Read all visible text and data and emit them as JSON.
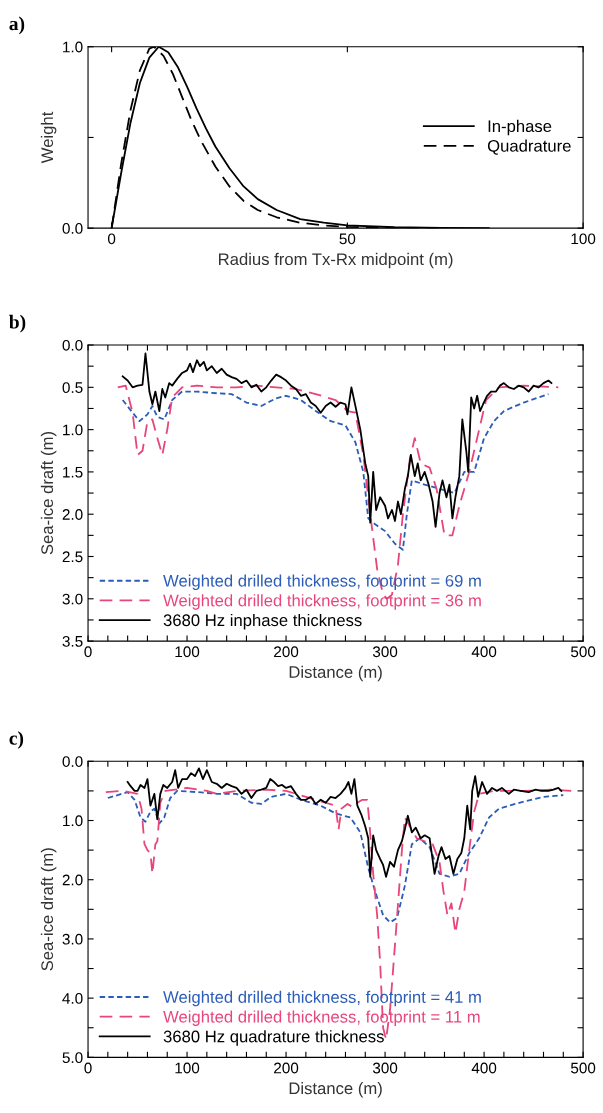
{
  "chart_data": [
    {
      "type": "line",
      "title": "a)",
      "xlabel": "Radius from Tx-Rx midpoint (m)",
      "ylabel": "Weight",
      "xlim": [
        -5,
        100
      ],
      "ylim": [
        0,
        1
      ],
      "xticks": [
        0,
        50,
        100
      ],
      "yticks": [
        {
          "value": 0,
          "label": "0.0"
        },
        {
          "value": 0.5,
          "label": null
        },
        {
          "value": 1,
          "label": "1.0"
        }
      ],
      "grid": false,
      "legend": "right",
      "marker": "none",
      "series": [
        {
          "name": "In-phase",
          "color": "#000000",
          "line_style": "solid",
          "x": [
            0,
            2,
            4,
            6,
            8,
            10,
            12,
            14,
            16,
            18,
            20,
            22,
            25,
            28,
            31,
            35,
            40,
            45,
            50,
            60,
            70,
            80
          ],
          "values": [
            0,
            0.3,
            0.58,
            0.8,
            0.94,
            1.0,
            0.97,
            0.89,
            0.78,
            0.66,
            0.55,
            0.45,
            0.33,
            0.23,
            0.16,
            0.1,
            0.05,
            0.03,
            0.015,
            0.005,
            0.002,
            0.0
          ]
        },
        {
          "name": "Quadrature",
          "color": "#000000",
          "line_style": "dashed",
          "x": [
            0,
            2,
            4,
            6,
            8,
            9,
            11,
            13,
            15,
            17,
            19,
            22,
            25,
            28,
            31,
            35,
            40,
            45,
            50,
            60,
            70
          ],
          "values": [
            0,
            0.35,
            0.65,
            0.87,
            0.99,
            1.0,
            0.95,
            0.85,
            0.72,
            0.59,
            0.48,
            0.34,
            0.23,
            0.15,
            0.1,
            0.06,
            0.03,
            0.015,
            0.007,
            0.002,
            0.0
          ]
        }
      ]
    },
    {
      "type": "line",
      "title": "b)",
      "xlabel": "Distance (m)",
      "ylabel": "Sea-ice draft (m)",
      "xlim": [
        0,
        500
      ],
      "ylim": [
        3.5,
        0
      ],
      "xticks": [
        0,
        {
          "value": 20,
          "label": null
        },
        {
          "value": 40,
          "label": null
        },
        {
          "value": 60,
          "label": null
        },
        {
          "value": 80,
          "label": null
        },
        100,
        {
          "value": 120,
          "label": null
        },
        {
          "value": 140,
          "label": null
        },
        {
          "value": 160,
          "label": null
        },
        {
          "value": 180,
          "label": null
        },
        200,
        {
          "value": 220,
          "label": null
        },
        {
          "value": 240,
          "label": null
        },
        {
          "value": 260,
          "label": null
        },
        {
          "value": 280,
          "label": null
        },
        300,
        {
          "value": 320,
          "label": null
        },
        {
          "value": 340,
          "label": null
        },
        {
          "value": 360,
          "label": null
        },
        {
          "value": 380,
          "label": null
        },
        400,
        {
          "value": 420,
          "label": null
        },
        {
          "value": 440,
          "label": null
        },
        {
          "value": 460,
          "label": null
        },
        {
          "value": 480,
          "label": null
        },
        500
      ],
      "yticks": [
        {
          "value": 0,
          "label": "0.0"
        },
        {
          "value": 0.25,
          "label": null
        },
        0.5,
        {
          "value": 0.75,
          "label": null
        },
        {
          "value": 1,
          "label": "1.0"
        },
        {
          "value": 1.25,
          "label": null
        },
        1.5,
        {
          "value": 1.75,
          "label": null
        },
        {
          "value": 2,
          "label": "2.0"
        },
        {
          "value": 2.25,
          "label": null
        },
        2.5,
        {
          "value": 2.75,
          "label": null
        },
        {
          "value": 3,
          "label": "3.0"
        },
        {
          "value": 3.25,
          "label": null
        },
        3.5
      ],
      "grid": false,
      "legend": "bottom left",
      "marker": "none",
      "series": [
        {
          "name": "Weighted drilled thickness, footprint = 69 m",
          "color": "#2a5cb8",
          "line_style": "dotted",
          "x": [
            35,
            45,
            52,
            60,
            65,
            70,
            77,
            85,
            95,
            110,
            130,
            145,
            160,
            175,
            190,
            200,
            215,
            230,
            245,
            260,
            270,
            278,
            283,
            290,
            300,
            310,
            318,
            322,
            327,
            340,
            355,
            370,
            380,
            390,
            400,
            410,
            420,
            440,
            465
          ],
          "values": [
            0.65,
            0.8,
            0.9,
            0.82,
            0.72,
            0.85,
            0.88,
            0.65,
            0.55,
            0.55,
            0.57,
            0.58,
            0.68,
            0.72,
            0.63,
            0.6,
            0.65,
            0.78,
            0.9,
            0.95,
            1.15,
            1.5,
            2.05,
            2.12,
            2.2,
            2.35,
            2.42,
            2.0,
            1.6,
            1.65,
            1.7,
            1.75,
            1.5,
            1.5,
            1.1,
            0.9,
            0.78,
            0.68,
            0.58
          ]
        },
        {
          "name": "Weighted drilled thickness, footprint = 36 m",
          "color": "#e8457a",
          "line_style": "dashed",
          "x": [
            30,
            38,
            45,
            50,
            55,
            60,
            65,
            70,
            75,
            80,
            85,
            95,
            110,
            130,
            150,
            170,
            190,
            210,
            230,
            250,
            262,
            270,
            278,
            285,
            292,
            298,
            302,
            307,
            313,
            318,
            325,
            330,
            336,
            345,
            352,
            360,
            368,
            375,
            385,
            395,
            402,
            415,
            440,
            475
          ],
          "values": [
            0.5,
            0.48,
            0.8,
            1.3,
            1.25,
            0.9,
            0.88,
            1.1,
            1.3,
            1.0,
            0.62,
            0.5,
            0.48,
            0.5,
            0.5,
            0.48,
            0.5,
            0.52,
            0.58,
            0.65,
            0.78,
            0.8,
            1.3,
            2.0,
            2.65,
            2.95,
            3.0,
            2.95,
            2.6,
            2.0,
            1.35,
            1.1,
            1.4,
            1.45,
            1.7,
            2.25,
            2.25,
            1.9,
            1.5,
            1.0,
            0.65,
            0.5,
            0.48,
            0.5
          ]
        },
        {
          "name": "3680 Hz inphase thickness",
          "color": "#000000",
          "line_style": "solid",
          "x": [
            35,
            40,
            45,
            50,
            55,
            58,
            62,
            65,
            68,
            72,
            75,
            78,
            82,
            85,
            90,
            95,
            100,
            103,
            106,
            110,
            113,
            117,
            120,
            125,
            130,
            135,
            140,
            145,
            150,
            155,
            160,
            165,
            170,
            175,
            180,
            185,
            190,
            195,
            200,
            205,
            210,
            215,
            220,
            225,
            230,
            235,
            240,
            245,
            250,
            255,
            260,
            262,
            266,
            270,
            275,
            280,
            283,
            285,
            288,
            291,
            295,
            300,
            303,
            307,
            310,
            313,
            316,
            320,
            323,
            326,
            330,
            333,
            336,
            340,
            344,
            348,
            351,
            355,
            358,
            362,
            365,
            368,
            371,
            375,
            378,
            382,
            384,
            387,
            390,
            393,
            396,
            399,
            403,
            407,
            412,
            416,
            420,
            425,
            430,
            435,
            440,
            445,
            450,
            455,
            460,
            465,
            468
          ],
          "values": [
            0.37,
            0.42,
            0.5,
            0.48,
            0.47,
            0.1,
            0.55,
            0.7,
            0.55,
            0.78,
            0.52,
            0.62,
            0.45,
            0.48,
            0.4,
            0.33,
            0.3,
            0.22,
            0.32,
            0.18,
            0.25,
            0.2,
            0.3,
            0.25,
            0.33,
            0.28,
            0.35,
            0.38,
            0.4,
            0.45,
            0.42,
            0.5,
            0.47,
            0.55,
            0.5,
            0.42,
            0.35,
            0.38,
            0.42,
            0.48,
            0.52,
            0.6,
            0.58,
            0.68,
            0.72,
            0.8,
            0.72,
            0.68,
            0.73,
            0.68,
            0.7,
            0.82,
            0.5,
            0.72,
            1.0,
            1.4,
            1.55,
            2.1,
            1.5,
            1.95,
            1.8,
            1.9,
            2.05,
            1.95,
            2.08,
            1.85,
            2.0,
            1.7,
            1.55,
            1.3,
            1.55,
            1.4,
            1.6,
            1.5,
            1.65,
            1.85,
            2.15,
            1.75,
            1.6,
            1.8,
            1.65,
            2.05,
            1.8,
            1.55,
            0.88,
            1.25,
            1.5,
            0.62,
            0.75,
            0.6,
            0.78,
            0.7,
            0.6,
            0.55,
            0.55,
            0.48,
            0.45,
            0.5,
            0.52,
            0.48,
            0.5,
            0.55,
            0.48,
            0.5,
            0.45,
            0.42,
            0.45
          ]
        }
      ]
    },
    {
      "type": "line",
      "title": "c)",
      "xlabel": "Distance (m)",
      "ylabel": "Sea-ice draft (m)",
      "xlim": [
        0,
        500
      ],
      "ylim": [
        5,
        0
      ],
      "xticks": [
        0,
        {
          "value": 20,
          "label": null
        },
        {
          "value": 40,
          "label": null
        },
        {
          "value": 60,
          "label": null
        },
        {
          "value": 80,
          "label": null
        },
        100,
        {
          "value": 120,
          "label": null
        },
        {
          "value": 140,
          "label": null
        },
        {
          "value": 160,
          "label": null
        },
        {
          "value": 180,
          "label": null
        },
        200,
        {
          "value": 220,
          "label": null
        },
        {
          "value": 240,
          "label": null
        },
        {
          "value": 260,
          "label": null
        },
        {
          "value": 280,
          "label": null
        },
        300,
        {
          "value": 320,
          "label": null
        },
        {
          "value": 340,
          "label": null
        },
        {
          "value": 360,
          "label": null
        },
        {
          "value": 380,
          "label": null
        },
        400,
        {
          "value": 420,
          "label": null
        },
        {
          "value": 440,
          "label": null
        },
        {
          "value": 460,
          "label": null
        },
        {
          "value": 480,
          "label": null
        },
        500
      ],
      "yticks": [
        {
          "value": 0,
          "label": "0.0"
        },
        {
          "value": 0.5,
          "label": null
        },
        {
          "value": 1,
          "label": "1.0"
        },
        {
          "value": 1.5,
          "label": null
        },
        {
          "value": 2,
          "label": "2.0"
        },
        {
          "value": 2.5,
          "label": null
        },
        {
          "value": 3,
          "label": "3.0"
        },
        {
          "value": 3.5,
          "label": null
        },
        {
          "value": 4,
          "label": "4.0"
        },
        {
          "value": 4.5,
          "label": null
        },
        {
          "value": 5,
          "label": "5.0"
        }
      ],
      "grid": false,
      "legend": "bottom left",
      "marker": "none",
      "series": [
        {
          "name": "Weighted drilled thickness, footprint = 41 m",
          "color": "#2a5cb8",
          "line_style": "dotted",
          "x": [
            20,
            30,
            40,
            47,
            53,
            58,
            63,
            67,
            72,
            77,
            83,
            90,
            110,
            130,
            150,
            165,
            175,
            185,
            200,
            215,
            235,
            250,
            265,
            275,
            283,
            290,
            298,
            305,
            312,
            320,
            327,
            335,
            345,
            355,
            365,
            375,
            385,
            395,
            405,
            415,
            440,
            460,
            480
          ],
          "values": [
            0.62,
            0.57,
            0.52,
            0.65,
            0.95,
            1.02,
            0.85,
            0.8,
            1.05,
            0.95,
            0.62,
            0.5,
            0.52,
            0.55,
            0.55,
            0.7,
            0.72,
            0.6,
            0.55,
            0.65,
            0.75,
            0.88,
            0.95,
            1.2,
            1.8,
            2.2,
            2.6,
            2.72,
            2.65,
            2.1,
            1.4,
            1.3,
            1.45,
            1.9,
            1.95,
            1.9,
            1.55,
            1.3,
            0.95,
            0.8,
            0.68,
            0.6,
            0.57
          ]
        },
        {
          "name": "Weighted drilled thickness, footprint = 11 m",
          "color": "#e8457a",
          "line_style": "dashed",
          "x": [
            18,
            35,
            50,
            54,
            57,
            60,
            63,
            65,
            68,
            70,
            73,
            78,
            100,
            120,
            130,
            150,
            180,
            200,
            220,
            240,
            250,
            253,
            256,
            262,
            268,
            272,
            277,
            282,
            284,
            288,
            292,
            295,
            298,
            301,
            305,
            310,
            314,
            317,
            320,
            325,
            332,
            340,
            348,
            355,
            359,
            363,
            367,
            371,
            375,
            380,
            385,
            390,
            395,
            410,
            440,
            470,
            488
          ],
          "values": [
            0.52,
            0.5,
            0.55,
            0.8,
            1.4,
            1.5,
            1.55,
            1.9,
            1.4,
            1.35,
            0.7,
            0.5,
            0.45,
            0.5,
            0.55,
            0.5,
            0.48,
            0.5,
            0.6,
            0.7,
            0.75,
            1.15,
            0.8,
            0.72,
            0.78,
            0.7,
            0.65,
            0.65,
            1.0,
            1.9,
            2.6,
            3.4,
            4.5,
            4.7,
            4.2,
            3.1,
            2.2,
            1.5,
            0.95,
            1.1,
            1.3,
            1.35,
            1.4,
            1.7,
            2.2,
            2.6,
            2.4,
            2.9,
            2.5,
            2.2,
            1.5,
            0.85,
            0.55,
            0.5,
            0.5,
            0.48,
            0.5
          ]
        },
        {
          "name": "3680 Hz quadrature thickness",
          "color": "#000000",
          "line_style": "solid",
          "x": [
            40,
            43,
            47,
            50,
            53,
            57,
            60,
            63,
            67,
            70,
            73,
            76,
            80,
            85,
            88,
            91,
            95,
            100,
            104,
            108,
            112,
            116,
            120,
            125,
            130,
            135,
            140,
            145,
            150,
            155,
            160,
            165,
            170,
            175,
            180,
            184,
            188,
            192,
            196,
            200,
            205,
            210,
            215,
            220,
            225,
            230,
            235,
            240,
            245,
            250,
            255,
            260,
            263,
            266,
            269,
            272,
            276,
            280,
            283,
            285,
            288,
            291,
            295,
            298,
            301,
            305,
            309,
            313,
            317,
            320,
            323,
            327,
            331,
            336,
            340,
            345,
            350,
            354,
            357,
            361,
            365,
            369,
            373,
            377,
            380,
            383,
            386,
            388,
            391,
            394,
            398,
            403,
            408,
            413,
            418,
            425,
            430,
            437,
            445,
            452,
            458,
            465,
            470,
            475,
            478
          ],
          "values": [
            0.35,
            0.42,
            0.5,
            0.5,
            0.4,
            0.45,
            0.3,
            0.75,
            0.55,
            0.98,
            0.55,
            0.4,
            0.45,
            0.35,
            0.15,
            0.45,
            0.3,
            0.3,
            0.2,
            0.25,
            0.12,
            0.3,
            0.15,
            0.35,
            0.38,
            0.45,
            0.38,
            0.42,
            0.45,
            0.55,
            0.48,
            0.62,
            0.5,
            0.48,
            0.45,
            0.3,
            0.35,
            0.42,
            0.4,
            0.45,
            0.42,
            0.55,
            0.65,
            0.65,
            0.6,
            0.72,
            0.65,
            0.7,
            0.6,
            0.62,
            0.55,
            0.45,
            0.35,
            0.55,
            0.3,
            0.75,
            0.9,
            1.1,
            1.3,
            1.95,
            1.25,
            1.5,
            1.65,
            1.75,
            1.95,
            1.7,
            1.78,
            1.5,
            1.35,
            1.15,
            0.92,
            1.2,
            1.12,
            1.3,
            1.25,
            1.3,
            1.9,
            1.6,
            1.45,
            1.65,
            1.6,
            1.9,
            1.65,
            1.55,
            1.3,
            0.75,
            1.15,
            0.5,
            0.25,
            0.6,
            0.35,
            0.55,
            0.45,
            0.5,
            0.45,
            0.55,
            0.48,
            0.5,
            0.52,
            0.48,
            0.5,
            0.5,
            0.48,
            0.45,
            0.5
          ]
        }
      ]
    }
  ]
}
